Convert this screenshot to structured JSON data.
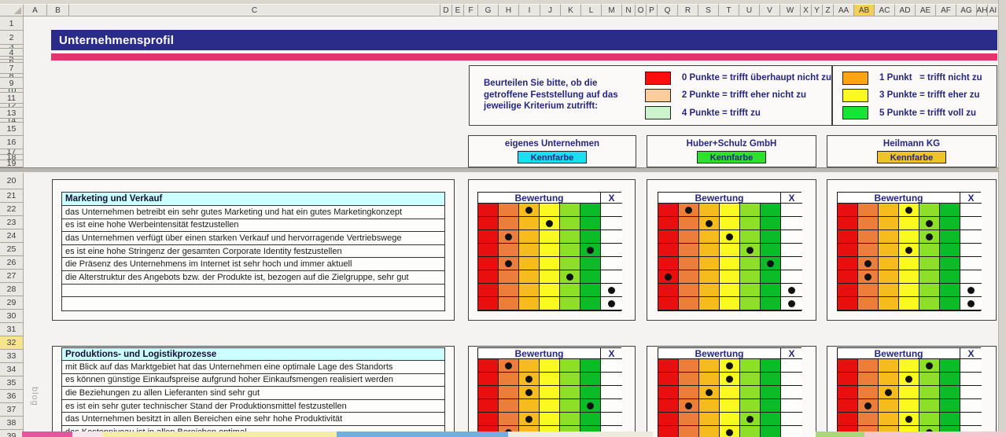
{
  "columns": {
    "letters": [
      "A",
      "B",
      "C",
      "D",
      "E",
      "F",
      "G",
      "H",
      "I",
      "J",
      "K",
      "L",
      "M",
      "N",
      "O",
      "P",
      "Q",
      "R",
      "S",
      "T",
      "U",
      "V",
      "W",
      "X",
      "Y",
      "Z",
      "AA",
      "AB",
      "AC",
      "AD",
      "AE",
      "AF",
      "AG",
      "AH",
      "AI"
    ],
    "highlighted": "AB"
  },
  "rows": {
    "labels": [
      "1",
      "2",
      "3",
      "4",
      "5",
      "6",
      "7",
      "8",
      "9",
      "10",
      "11",
      "12",
      "13",
      "14",
      "15",
      "16",
      "17",
      "18",
      "19",
      "20",
      "21",
      "22",
      "23",
      "24",
      "25",
      "26",
      "27",
      "28",
      "29",
      "30",
      "31",
      "32",
      "33",
      "34",
      "35",
      "36",
      "37",
      "38",
      "39"
    ],
    "highlighted": "32"
  },
  "title": {
    "text": "Unternehmensprofil",
    "bar_color": "#2b2b8a",
    "stripe_color": "#e7336d"
  },
  "legend": {
    "prompt": "Beurteilen Sie bitte, ob die getroffene Feststellung auf das jeweilige Kriterium zutrifft:",
    "items_left": [
      {
        "color": "#fd0d0d",
        "label": "0 Punkte = trifft überhaupt nicht zu"
      },
      {
        "color": "#fbcd9a",
        "label": "2 Punkte = trifft eher nicht zu"
      },
      {
        "color": "#cdf3cd",
        "label": "4 Punkte = trifft zu"
      }
    ],
    "items_right": [
      {
        "color": "#fca510",
        "label": "1 Punkt   = trifft nicht zu"
      },
      {
        "color": "#fafa1e",
        "label": "3 Punkte = trifft eher zu"
      },
      {
        "color": "#17e433",
        "label": "5 Punkte = trifft voll zu"
      }
    ]
  },
  "companies": [
    {
      "name": "eigenes Unternehmen",
      "button_label": "Kennfarbe",
      "color": "#1bdff0"
    },
    {
      "name": "Huber+Schulz GmbH",
      "button_label": "Kennfarbe",
      "color": "#2ce02c"
    },
    {
      "name": "Heilmann KG",
      "button_label": "Kennfarbe",
      "color": "#edc32a"
    }
  ],
  "matrix": {
    "header": "Bewertung",
    "x_header": "X",
    "column_colors": [
      "#e90f0f",
      "#ed7d3a",
      "#f6bc1d",
      "#fafa20",
      "#8ddf28",
      "#0cbb28"
    ]
  },
  "sections": [
    {
      "title": "Marketing und Verkauf",
      "criteria": [
        "das Unternehmen betreibt ein sehr gutes Marketing und hat ein gutes Marketingkonzept",
        "es ist eine hohe Werbeintensität festzustellen",
        "das Unternehmen verfügt über einen starken Verkauf und hervorragende Vertriebswege",
        "es ist eine hohe Stringenz der gesamten Corporate Identity festzustellen",
        "die Präsenz des Unternehmens im Internet ist sehr hoch und immer aktuell",
        "die Alterstruktur des Angebots bzw. der Produkte ist, bezogen auf die Zielgruppe, sehr gut",
        "",
        ""
      ],
      "ratings": [
        [
          2,
          3,
          1,
          5,
          1,
          4,
          "X",
          "X"
        ],
        [
          1,
          2,
          3,
          4,
          5,
          0,
          "X",
          "X"
        ],
        [
          3,
          4,
          4,
          3,
          1,
          1,
          "X",
          "X"
        ]
      ]
    },
    {
      "title": "Produktions- und Logistikprozesse",
      "criteria": [
        "mit Blick auf das Marktgebiet hat das Unternehmen eine optimale Lage des Standorts",
        "es können günstige Einkaufspreise aufgrund hoher Einkaufsmengen realisiert werden",
        "die Beziehungen zu allen Lieferanten sind sehr gut",
        "es ist ein sehr guter technischer Stand der Produktionsmittel festzustellen",
        "das Unternehmen besitzt in allen Bereichen eine sehr hohe Produktivität",
        "das Kostenniveau ist in allen Bereichen optimal"
      ],
      "ratings": [
        [
          1,
          2,
          2,
          5,
          2,
          1
        ],
        [
          3,
          3,
          2,
          1,
          4,
          3
        ],
        [
          4,
          3,
          2,
          1,
          3,
          4
        ]
      ]
    }
  ],
  "watermark": {
    "side_text": "blog"
  }
}
